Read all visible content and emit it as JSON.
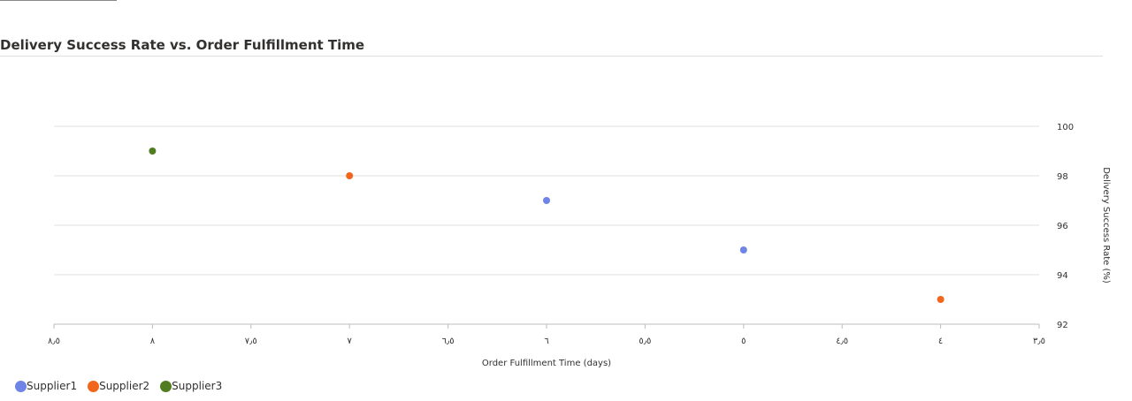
{
  "page": {
    "title": "Delivery Success Rate vs. Order Fulfillment Time"
  },
  "chart_data": {
    "type": "scatter",
    "title": "Delivery Success Rate vs. Order Fulfillment Time",
    "xlabel": "Order Fulfillment Time (days)",
    "ylabel": "Delivery Success Rate (%)",
    "xlim": [
      3.5,
      8.5
    ],
    "ylim": [
      92,
      100
    ],
    "x_reversed": true,
    "y_axis_side": "right",
    "grid": "horizontal",
    "legend_position": "bottom-left",
    "x_tick_labels": [
      "٨٫٥",
      "٨",
      "٧٫٥",
      "٧",
      "٦٫٥",
      "٦",
      "٥٫٥",
      "٥",
      "٤٫٥",
      "٤",
      "٣٫٥"
    ],
    "x_ticks": [
      8.5,
      8,
      7.5,
      7,
      6.5,
      6,
      5.5,
      5,
      4.5,
      4,
      3.5
    ],
    "y_ticks": [
      92,
      94,
      96,
      98,
      100
    ],
    "y_tick_labels": [
      "92",
      "94",
      "96",
      "98",
      "100"
    ],
    "series": [
      {
        "name": "Supplier1",
        "color": "#6f84e6",
        "points": [
          {
            "x": 6,
            "y": 97
          },
          {
            "x": 5,
            "y": 95
          }
        ]
      },
      {
        "name": "Supplier2",
        "color": "#f2661c",
        "points": [
          {
            "x": 7,
            "y": 98
          },
          {
            "x": 4,
            "y": 93
          }
        ]
      },
      {
        "name": "Supplier3",
        "color": "#517c1f",
        "points": [
          {
            "x": 8,
            "y": 99
          }
        ]
      }
    ]
  }
}
